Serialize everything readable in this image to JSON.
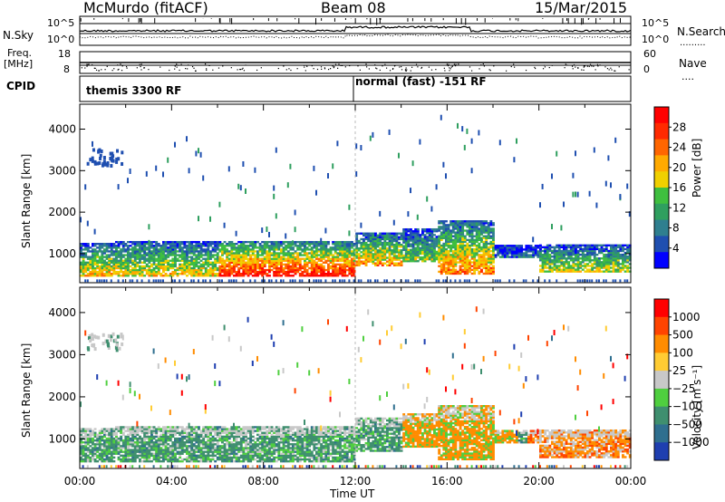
{
  "header": {
    "station": "McMurdo (fitACF)",
    "beam": "Beam 08",
    "date": "15/Mar/2015"
  },
  "noise_panel": {
    "left_label": "N.Sky",
    "right_label": "N.Search",
    "right_ticks": [
      "10^5",
      "10^0"
    ],
    "left_ticks": [
      "10^5",
      "10^0"
    ]
  },
  "freq_panel": {
    "left_label_top": "Freq.",
    "left_label_unit": "[MHz]",
    "left_ticks": [
      "18",
      "8"
    ],
    "right_label": "Nave",
    "right_ticks": [
      "60",
      "0"
    ]
  },
  "cpid_panel": {
    "label": "CPID",
    "segments": [
      "themis 3300 RF",
      "normal (fast) -151 RF"
    ]
  },
  "chart_data": [
    {
      "type": "heatmap",
      "title": "",
      "xlabel": "",
      "ylabel": "Slant Range [km]",
      "yticks": [
        "1000",
        "2000",
        "3000",
        "4000"
      ],
      "ylim": [
        300,
        4600
      ],
      "xlim": [
        "00:00",
        "24:00"
      ],
      "colorbar": {
        "label": "Power [dB]",
        "ticks": [
          "4",
          "8",
          "12",
          "16",
          "20",
          "24",
          "28"
        ],
        "colors": [
          "#0000ff",
          "#1f4fb0",
          "#2f7f8f",
          "#2f9f5f",
          "#3fbf3f",
          "#f0d000",
          "#ffaa00",
          "#ff6600",
          "#ff2a00",
          "#ff0000"
        ]
      }
    },
    {
      "type": "heatmap",
      "title": "",
      "xlabel": "Time UT",
      "ylabel": "Slant Range [km]",
      "yticks": [
        "1000",
        "2000",
        "3000",
        "4000"
      ],
      "ylim": [
        300,
        4600
      ],
      "xticks": [
        "00:00",
        "04:00",
        "08:00",
        "12:00",
        "16:00",
        "20:00",
        "00:00"
      ],
      "colorbar": {
        "label": "Velocity [m s⁻¹]",
        "ticks": [
          "1000",
          "500",
          "100",
          "25",
          "−25",
          "−100",
          "−500",
          "−1000"
        ],
        "colors": [
          "#1f3fb0",
          "#2f6f8f",
          "#3f8f6f",
          "#4fcf3f",
          "#c8c8c8",
          "#ffcc33",
          "#ff8c00",
          "#ff4400",
          "#ff0000"
        ]
      }
    }
  ]
}
